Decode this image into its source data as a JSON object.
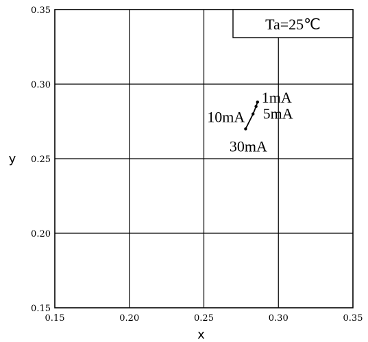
{
  "chart_data": {
    "type": "line",
    "title": "",
    "xlabel": "x",
    "ylabel": "y",
    "xlim": [
      0.15,
      0.35
    ],
    "ylim": [
      0.15,
      0.35
    ],
    "grid": true,
    "x_ticks": [
      "0.15",
      "0.20",
      "0.25",
      "0.30",
      "0.35"
    ],
    "y_ticks": [
      "0.15",
      "0.20",
      "0.25",
      "0.30",
      "0.35"
    ],
    "legend": {
      "text": "Ta=25℃",
      "placement": "top-right"
    },
    "series": [
      {
        "points": [
          {
            "x": 0.286,
            "y": 0.288,
            "label": "1mA"
          },
          {
            "x": 0.285,
            "y": 0.285,
            "label": "5mA"
          },
          {
            "x": 0.283,
            "y": 0.28,
            "label": "10mA"
          },
          {
            "x": 0.278,
            "y": 0.27,
            "label": "30mA"
          }
        ]
      }
    ]
  }
}
